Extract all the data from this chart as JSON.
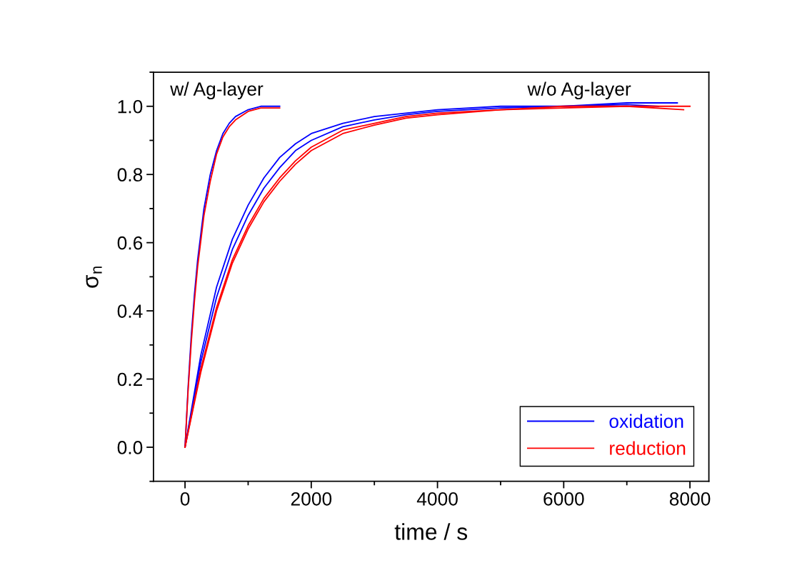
{
  "chart_data": {
    "type": "line",
    "xlabel": "time / s",
    "ylabel": "σ$_{n}$",
    "xlim": [
      -500,
      8300
    ],
    "ylim": [
      -0.1,
      1.1
    ],
    "xticks": [
      0,
      2000,
      4000,
      6000,
      8000
    ],
    "yticks": [
      {
        "value": 0,
        "label": "0.0"
      },
      0.2,
      0.4,
      0.6,
      0.8,
      {
        "value": 1,
        "label": "1.0"
      }
    ],
    "grid": false,
    "legend": "bottom right",
    "marker": "none",
    "line_style": "solid",
    "annotations": [
      "w/ Ag-layer",
      "w/o Ag-layer"
    ],
    "series": [
      {
        "name": "oxidation",
        "color": "#0000ff",
        "x": [
          0,
          50,
          100,
          150,
          200,
          300,
          400,
          500,
          600,
          700,
          800,
          1000,
          1200,
          1500
        ],
        "values": [
          0,
          0.18,
          0.33,
          0.45,
          0.55,
          0.7,
          0.8,
          0.87,
          0.92,
          0.95,
          0.97,
          0.99,
          1.0,
          1.0
        ]
      },
      {
        "name": "reduction",
        "color": "#ff0000",
        "x": [
          0,
          50,
          100,
          150,
          200,
          300,
          400,
          500,
          600,
          700,
          800,
          1000,
          1200,
          1500
        ],
        "values": [
          0,
          0.17,
          0.31,
          0.43,
          0.53,
          0.68,
          0.78,
          0.86,
          0.91,
          0.94,
          0.96,
          0.985,
          0.995,
          0.995
        ]
      },
      {
        "color": "#0000ff",
        "x": [
          0,
          250,
          500,
          750,
          1000,
          1250,
          1500,
          1750,
          2000,
          2500,
          3000,
          3500,
          4000,
          5000,
          6000,
          7000,
          7800
        ],
        "values": [
          0,
          0.27,
          0.47,
          0.61,
          0.71,
          0.79,
          0.85,
          0.89,
          0.92,
          0.95,
          0.97,
          0.98,
          0.99,
          1.0,
          1.0,
          1.01,
          1.01
        ]
      },
      {
        "color": "#0000ff",
        "x": [
          0,
          250,
          500,
          750,
          1000,
          1250,
          1500,
          1750,
          2000,
          2500,
          3000,
          3500,
          4000,
          5000,
          6000,
          7000,
          7500
        ],
        "values": [
          0,
          0.25,
          0.44,
          0.58,
          0.68,
          0.76,
          0.82,
          0.87,
          0.9,
          0.94,
          0.96,
          0.975,
          0.985,
          0.995,
          1.0,
          1.005,
          1.0
        ]
      },
      {
        "color": "#ff0000",
        "x": [
          0,
          250,
          500,
          750,
          1000,
          1250,
          1500,
          1750,
          2000,
          2500,
          3000,
          3500,
          4000,
          5000,
          6000,
          7000,
          8000
        ],
        "values": [
          0,
          0.23,
          0.41,
          0.55,
          0.65,
          0.73,
          0.79,
          0.84,
          0.88,
          0.93,
          0.95,
          0.97,
          0.98,
          0.99,
          1.0,
          1.0,
          1.0
        ]
      },
      {
        "color": "#ff0000",
        "x": [
          0,
          250,
          500,
          750,
          1000,
          1250,
          1500,
          1750,
          2000,
          2500,
          3000,
          3500,
          4000,
          5000,
          6000,
          7000,
          7900
        ],
        "values": [
          0,
          0.22,
          0.4,
          0.54,
          0.64,
          0.72,
          0.78,
          0.83,
          0.87,
          0.92,
          0.945,
          0.965,
          0.975,
          0.99,
          0.995,
          1.0,
          0.99
        ]
      }
    ]
  }
}
